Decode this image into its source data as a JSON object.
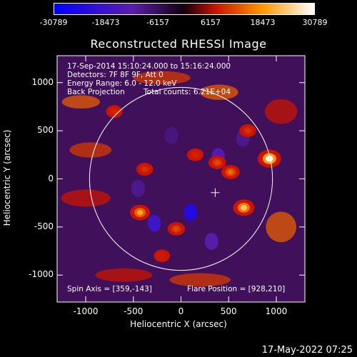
{
  "colorbar": {
    "labels": [
      "-30789",
      "-18473",
      "-6157",
      "6157",
      "18473",
      "30789"
    ],
    "min": -30789,
    "max": 30789
  },
  "info": {
    "time_range": "17-Sep-2014 15:10:24.000 to 15:16:24.000",
    "detectors": "Detectors: 7F 8F 9F, Att 0",
    "energy": "Energy Range: 6.0 - 12.0 keV",
    "method": "Back Projection",
    "counts": "Total counts: 6.21E+04",
    "spin_axis": "Spin Axis = [359,-143]",
    "flare_position": "Flare Position = [928,210]"
  },
  "footer": {
    "date": "17-May-2022 07:25"
  },
  "chart_data": {
    "type": "heatmap",
    "title": "Reconstructed RHESSI Image",
    "xlabel": "Heliocentric X (arcsec)",
    "ylabel": "Heliocentric Y (arcsec)",
    "xlim": [
      -1300,
      1300
    ],
    "ylim": [
      -1280,
      1280
    ],
    "xticks": [
      -1000,
      -500,
      0,
      500,
      1000
    ],
    "yticks": [
      1000,
      500,
      0,
      -500,
      -1000
    ],
    "solar_limb_radius": 960,
    "crosshair": [
      359,
      -143
    ],
    "sources": [
      {
        "x": 928,
        "y": 210,
        "value": 30789
      },
      {
        "x": 659,
        "y": -300,
        "value": 24000
      },
      {
        "x": -430,
        "y": -350,
        "value": 20000
      },
      {
        "x": -50,
        "y": -520,
        "value": 12000
      },
      {
        "x": 520,
        "y": 70,
        "value": 15000
      },
      {
        "x": 380,
        "y": 170,
        "value": 12000
      },
      {
        "x": -380,
        "y": 100,
        "value": 10000
      },
      {
        "x": 150,
        "y": 250,
        "value": 9000
      },
      {
        "x": -200,
        "y": -800,
        "value": 8000
      },
      {
        "x": 700,
        "y": 500,
        "value": 10000
      },
      {
        "x": -700,
        "y": 700,
        "value": 9000
      }
    ],
    "sinks": [
      {
        "x": 100,
        "y": -350,
        "value": -24000
      },
      {
        "x": -280,
        "y": -460,
        "value": -18000
      },
      {
        "x": 390,
        "y": 230,
        "value": -14000
      },
      {
        "x": -450,
        "y": -100,
        "value": -10000
      },
      {
        "x": 650,
        "y": 420,
        "value": -10000
      },
      {
        "x": 320,
        "y": -650,
        "value": -12000
      },
      {
        "x": -100,
        "y": 450,
        "value": -9000
      }
    ]
  }
}
